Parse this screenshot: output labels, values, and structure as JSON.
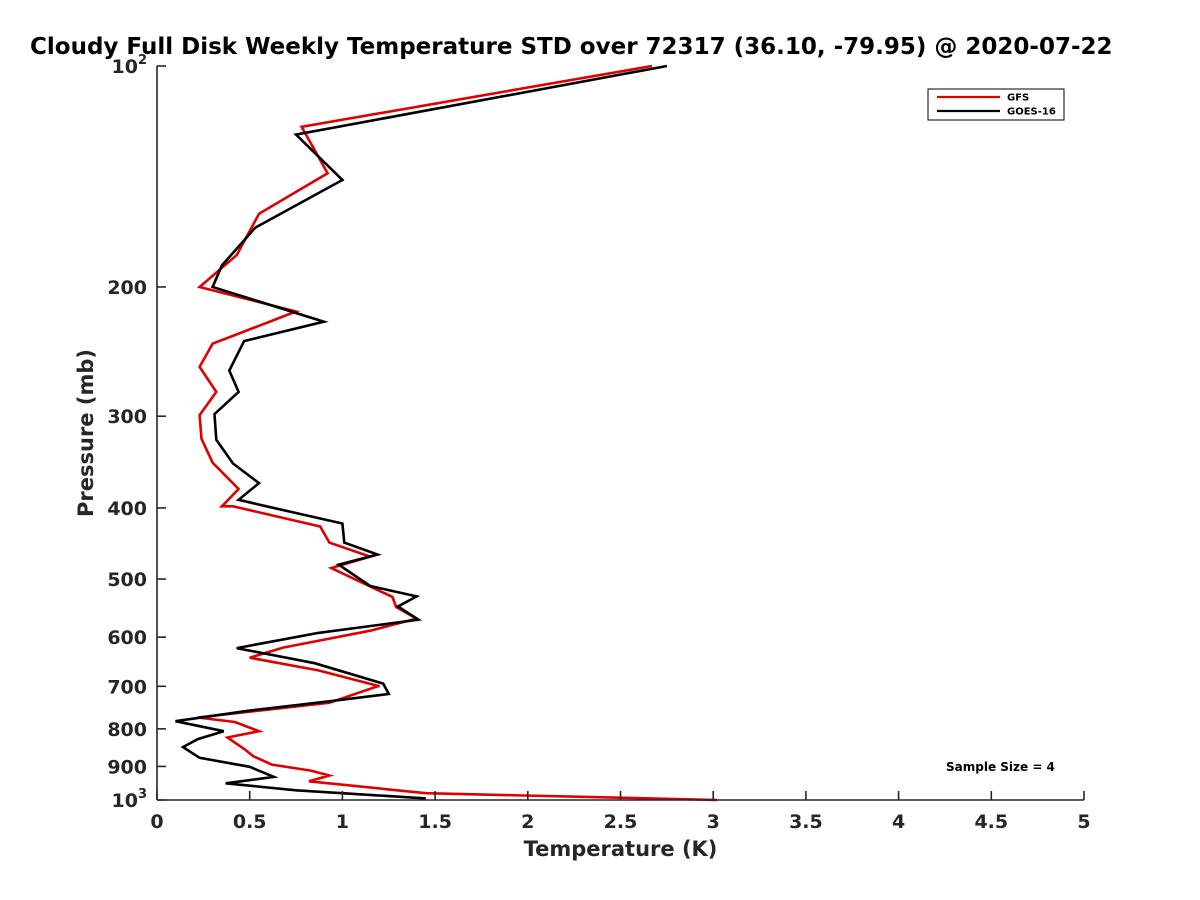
{
  "colors": {
    "GFS": "#e00000",
    "GOES-16": "#000000",
    "axis": "#262626"
  },
  "chart_data": {
    "type": "line",
    "title": "Cloudy Full Disk Weekly Temperature STD over 72317 (36.10, -79.95) @ 2020-07-22",
    "xlabel": "Temperature (K)",
    "ylabel": "Pressure (mb)",
    "xlim": [
      0,
      5
    ],
    "ylim": [
      100,
      1000
    ],
    "yscale": "log",
    "yreversed": true,
    "grid": false,
    "legend_position": "top-right",
    "x_ticks": [
      "0",
      "0.5",
      "1",
      "1.5",
      "2",
      "2.5",
      "3",
      "3.5",
      "4",
      "4.5",
      "5"
    ],
    "y_ticks": [
      {
        "value": 100,
        "label": "10",
        "sup": "2"
      },
      {
        "value": 200,
        "label": "200"
      },
      {
        "value": 300,
        "label": "300"
      },
      {
        "value": 400,
        "label": "400"
      },
      {
        "value": 500,
        "label": "500"
      },
      {
        "value": 600,
        "label": "600"
      },
      {
        "value": 700,
        "label": "700"
      },
      {
        "value": 800,
        "label": "800"
      },
      {
        "value": 900,
        "label": "900"
      },
      {
        "value": 1000,
        "label": "10",
        "sup": "3"
      }
    ],
    "annotation": "Sample Size = 4",
    "series": [
      {
        "name": "GFS",
        "x": [
          2.67,
          0.78,
          0.92,
          0.55,
          0.43,
          0.23,
          0.75,
          0.3,
          0.23,
          0.32,
          0.23,
          0.24,
          0.3,
          0.44,
          0.35,
          0.41,
          0.88,
          0.93,
          1.15,
          0.94,
          1.27,
          1.29,
          1.4,
          1.15,
          0.68,
          0.5,
          0.87,
          1.2,
          1.19,
          0.93,
          0.22,
          0.42,
          0.55,
          0.38,
          0.47,
          0.52,
          0.62,
          0.83,
          0.93,
          0.82,
          1.45,
          3.02
        ],
        "y": [
          100,
          121,
          140,
          159,
          181,
          200,
          216,
          239,
          257,
          278,
          299,
          322,
          347,
          377,
          398,
          398,
          424,
          446,
          466,
          483,
          529,
          546,
          566,
          588,
          620,
          640,
          666,
          700,
          700,
          737,
          772,
          783,
          806,
          822,
          852,
          872,
          895,
          912,
          926,
          943,
          979,
          1000
        ]
      },
      {
        "name": "GOES-16",
        "x": [
          2.75,
          0.75,
          1.0,
          0.53,
          0.35,
          0.3,
          0.9,
          0.47,
          0.39,
          0.44,
          0.31,
          0.32,
          0.41,
          0.55,
          0.44,
          0.59,
          1.0,
          1.01,
          1.19,
          0.98,
          1.15,
          1.4,
          1.3,
          1.41,
          0.87,
          0.43,
          0.85,
          1.22,
          1.25,
          0.9,
          0.49,
          0.1,
          0.36,
          0.22,
          0.14,
          0.23,
          0.5,
          0.63,
          0.37,
          0.75,
          1.45
        ],
        "y": [
          100,
          124,
          143,
          166,
          187,
          200,
          223,
          237,
          260,
          278,
          298,
          323,
          348,
          370,
          390,
          398,
          420,
          446,
          463,
          478,
          511,
          528,
          545,
          568,
          592,
          621,
          651,
          694,
          717,
          735,
          756,
          781,
          806,
          826,
          847,
          876,
          901,
          930,
          949,
          970,
          995
        ]
      }
    ]
  }
}
